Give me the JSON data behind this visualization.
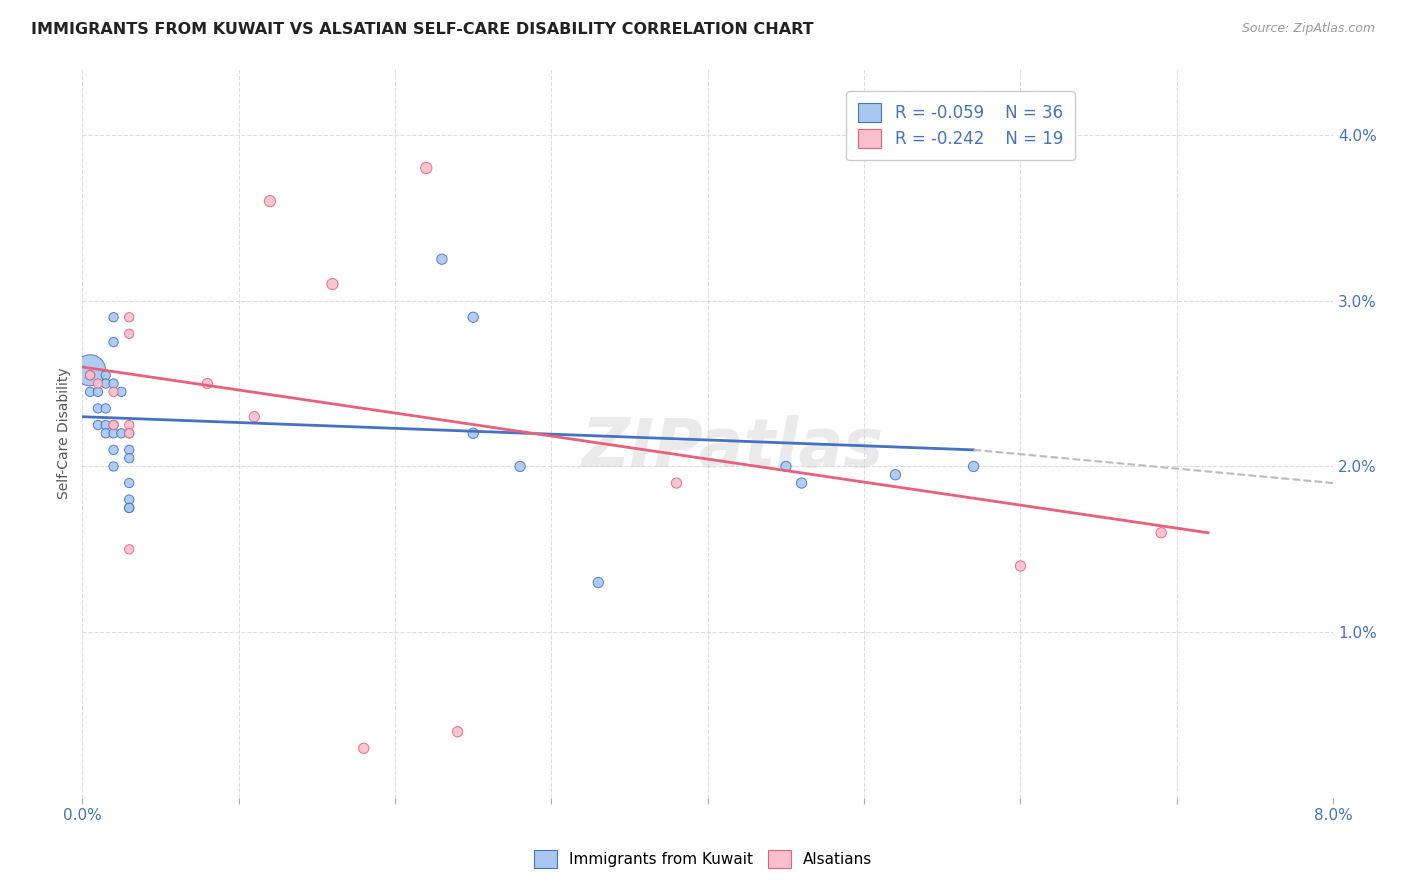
{
  "title": "IMMIGRANTS FROM KUWAIT VS ALSATIAN SELF-CARE DISABILITY CORRELATION CHART",
  "source": "Source: ZipAtlas.com",
  "ylabel": "Self-Care Disability",
  "xlim": [
    0.0,
    0.08
  ],
  "ylim": [
    0.0,
    0.044
  ],
  "yticks": [
    0.01,
    0.02,
    0.03,
    0.04
  ],
  "ytick_labels": [
    "1.0%",
    "2.0%",
    "3.0%",
    "4.0%"
  ],
  "xticks": [
    0.0,
    0.01,
    0.02,
    0.03,
    0.04,
    0.05,
    0.06,
    0.07,
    0.08
  ],
  "xtick_labels": [
    "0.0%",
    "",
    "",
    "",
    "",
    "",
    "",
    "",
    "8.0%"
  ],
  "legend_r1": "-0.059",
  "legend_n1": "36",
  "legend_r2": "-0.242",
  "legend_n2": "19",
  "color_blue": "#A8C8F0",
  "color_pink": "#F7C0CC",
  "color_blue_line": "#4472C4",
  "color_pink_line": "#E8607A",
  "color_dashed": "#BBBBBB",
  "watermark": "ZIPatlas",
  "blue_line": [
    0.0,
    0.023,
    0.057,
    0.021
  ],
  "blue_dash": [
    0.057,
    0.021,
    0.08,
    0.019
  ],
  "pink_line": [
    0.0,
    0.026,
    0.072,
    0.016
  ],
  "blue_points": [
    [
      0.0005,
      0.0258,
      500
    ],
    [
      0.0005,
      0.0255,
      45
    ],
    [
      0.0005,
      0.0245,
      45
    ],
    [
      0.001,
      0.0245,
      45
    ],
    [
      0.001,
      0.0235,
      45
    ],
    [
      0.001,
      0.0225,
      45
    ],
    [
      0.0015,
      0.0255,
      45
    ],
    [
      0.0015,
      0.025,
      45
    ],
    [
      0.0015,
      0.0235,
      45
    ],
    [
      0.0015,
      0.0225,
      45
    ],
    [
      0.0015,
      0.022,
      45
    ],
    [
      0.002,
      0.029,
      45
    ],
    [
      0.002,
      0.0275,
      45
    ],
    [
      0.002,
      0.025,
      45
    ],
    [
      0.002,
      0.0225,
      45
    ],
    [
      0.002,
      0.022,
      45
    ],
    [
      0.002,
      0.021,
      45
    ],
    [
      0.002,
      0.02,
      45
    ],
    [
      0.0025,
      0.0245,
      45
    ],
    [
      0.0025,
      0.022,
      45
    ],
    [
      0.003,
      0.022,
      45
    ],
    [
      0.003,
      0.021,
      45
    ],
    [
      0.003,
      0.0205,
      45
    ],
    [
      0.003,
      0.019,
      45
    ],
    [
      0.003,
      0.018,
      45
    ],
    [
      0.003,
      0.0175,
      45
    ],
    [
      0.003,
      0.0175,
      45
    ],
    [
      0.023,
      0.0325,
      55
    ],
    [
      0.025,
      0.029,
      55
    ],
    [
      0.025,
      0.022,
      55
    ],
    [
      0.028,
      0.02,
      55
    ],
    [
      0.033,
      0.013,
      55
    ],
    [
      0.045,
      0.02,
      55
    ],
    [
      0.046,
      0.019,
      55
    ],
    [
      0.052,
      0.0195,
      55
    ],
    [
      0.057,
      0.02,
      55
    ]
  ],
  "pink_points": [
    [
      0.0005,
      0.0255,
      45
    ],
    [
      0.001,
      0.025,
      45
    ],
    [
      0.002,
      0.0245,
      45
    ],
    [
      0.002,
      0.0225,
      45
    ],
    [
      0.003,
      0.029,
      45
    ],
    [
      0.003,
      0.028,
      45
    ],
    [
      0.003,
      0.0225,
      45
    ],
    [
      0.003,
      0.022,
      45
    ],
    [
      0.003,
      0.015,
      45
    ],
    [
      0.008,
      0.025,
      55
    ],
    [
      0.011,
      0.023,
      55
    ],
    [
      0.012,
      0.036,
      65
    ],
    [
      0.016,
      0.031,
      65
    ],
    [
      0.018,
      0.003,
      55
    ],
    [
      0.022,
      0.038,
      65
    ],
    [
      0.024,
      0.004,
      55
    ],
    [
      0.038,
      0.019,
      55
    ],
    [
      0.06,
      0.014,
      55
    ],
    [
      0.069,
      0.016,
      55
    ]
  ]
}
